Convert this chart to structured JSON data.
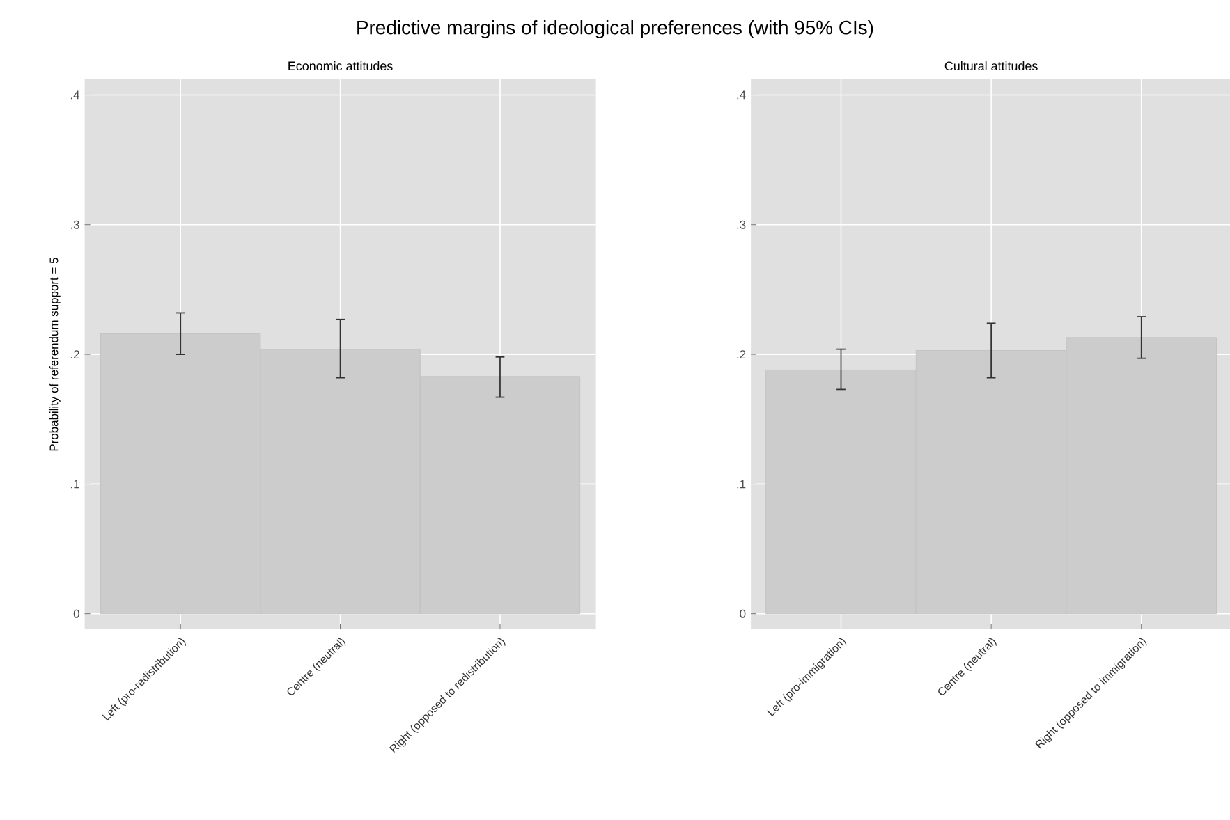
{
  "chart_data": [
    {
      "type": "bar",
      "title": "Economic attitudes",
      "ylabel": "Probability of referendum support = 5",
      "annotations": [
        "Predictive margins of ideological preferences (with 95% CIs)"
      ],
      "categories": [
        "Left (pro-redistribution)",
        "Centre (neutral)",
        "Right (opposed to redistribution)"
      ],
      "values": [
        0.216,
        0.204,
        0.183
      ],
      "color": "#cccccc",
      "errors": [
        [
          0.2,
          0.232
        ],
        [
          0.182,
          0.227
        ],
        [
          0.167,
          0.198
        ]
      ],
      "ylim": [
        -0.012,
        0.412
      ],
      "yticks": [
        {
          "value": 0,
          "label": "0"
        },
        {
          "value": 0.1,
          "label": ".1"
        },
        {
          "value": 0.2,
          "label": ".2"
        },
        {
          "value": 0.3,
          "label": ".3"
        },
        {
          "value": 0.4,
          "label": ".4"
        }
      ],
      "grid": true
    },
    {
      "type": "bar",
      "title": "Cultural attitudes",
      "categories": [
        "Left (pro-immigration)",
        "Centre (neutral)",
        "Right (opposed to immigration)"
      ],
      "values": [
        0.188,
        0.203,
        0.213
      ],
      "color": "#cccccc",
      "errors": [
        [
          0.173,
          0.204
        ],
        [
          0.182,
          0.224
        ],
        [
          0.197,
          0.229
        ]
      ],
      "ylim": [
        -0.012,
        0.412
      ],
      "yticks": [
        {
          "value": 0,
          "label": "0"
        },
        {
          "value": 0.1,
          "label": ".1"
        },
        {
          "value": 0.2,
          "label": ".2"
        },
        {
          "value": 0.3,
          "label": ".3"
        },
        {
          "value": 0.4,
          "label": ".4"
        }
      ],
      "grid": true
    }
  ]
}
